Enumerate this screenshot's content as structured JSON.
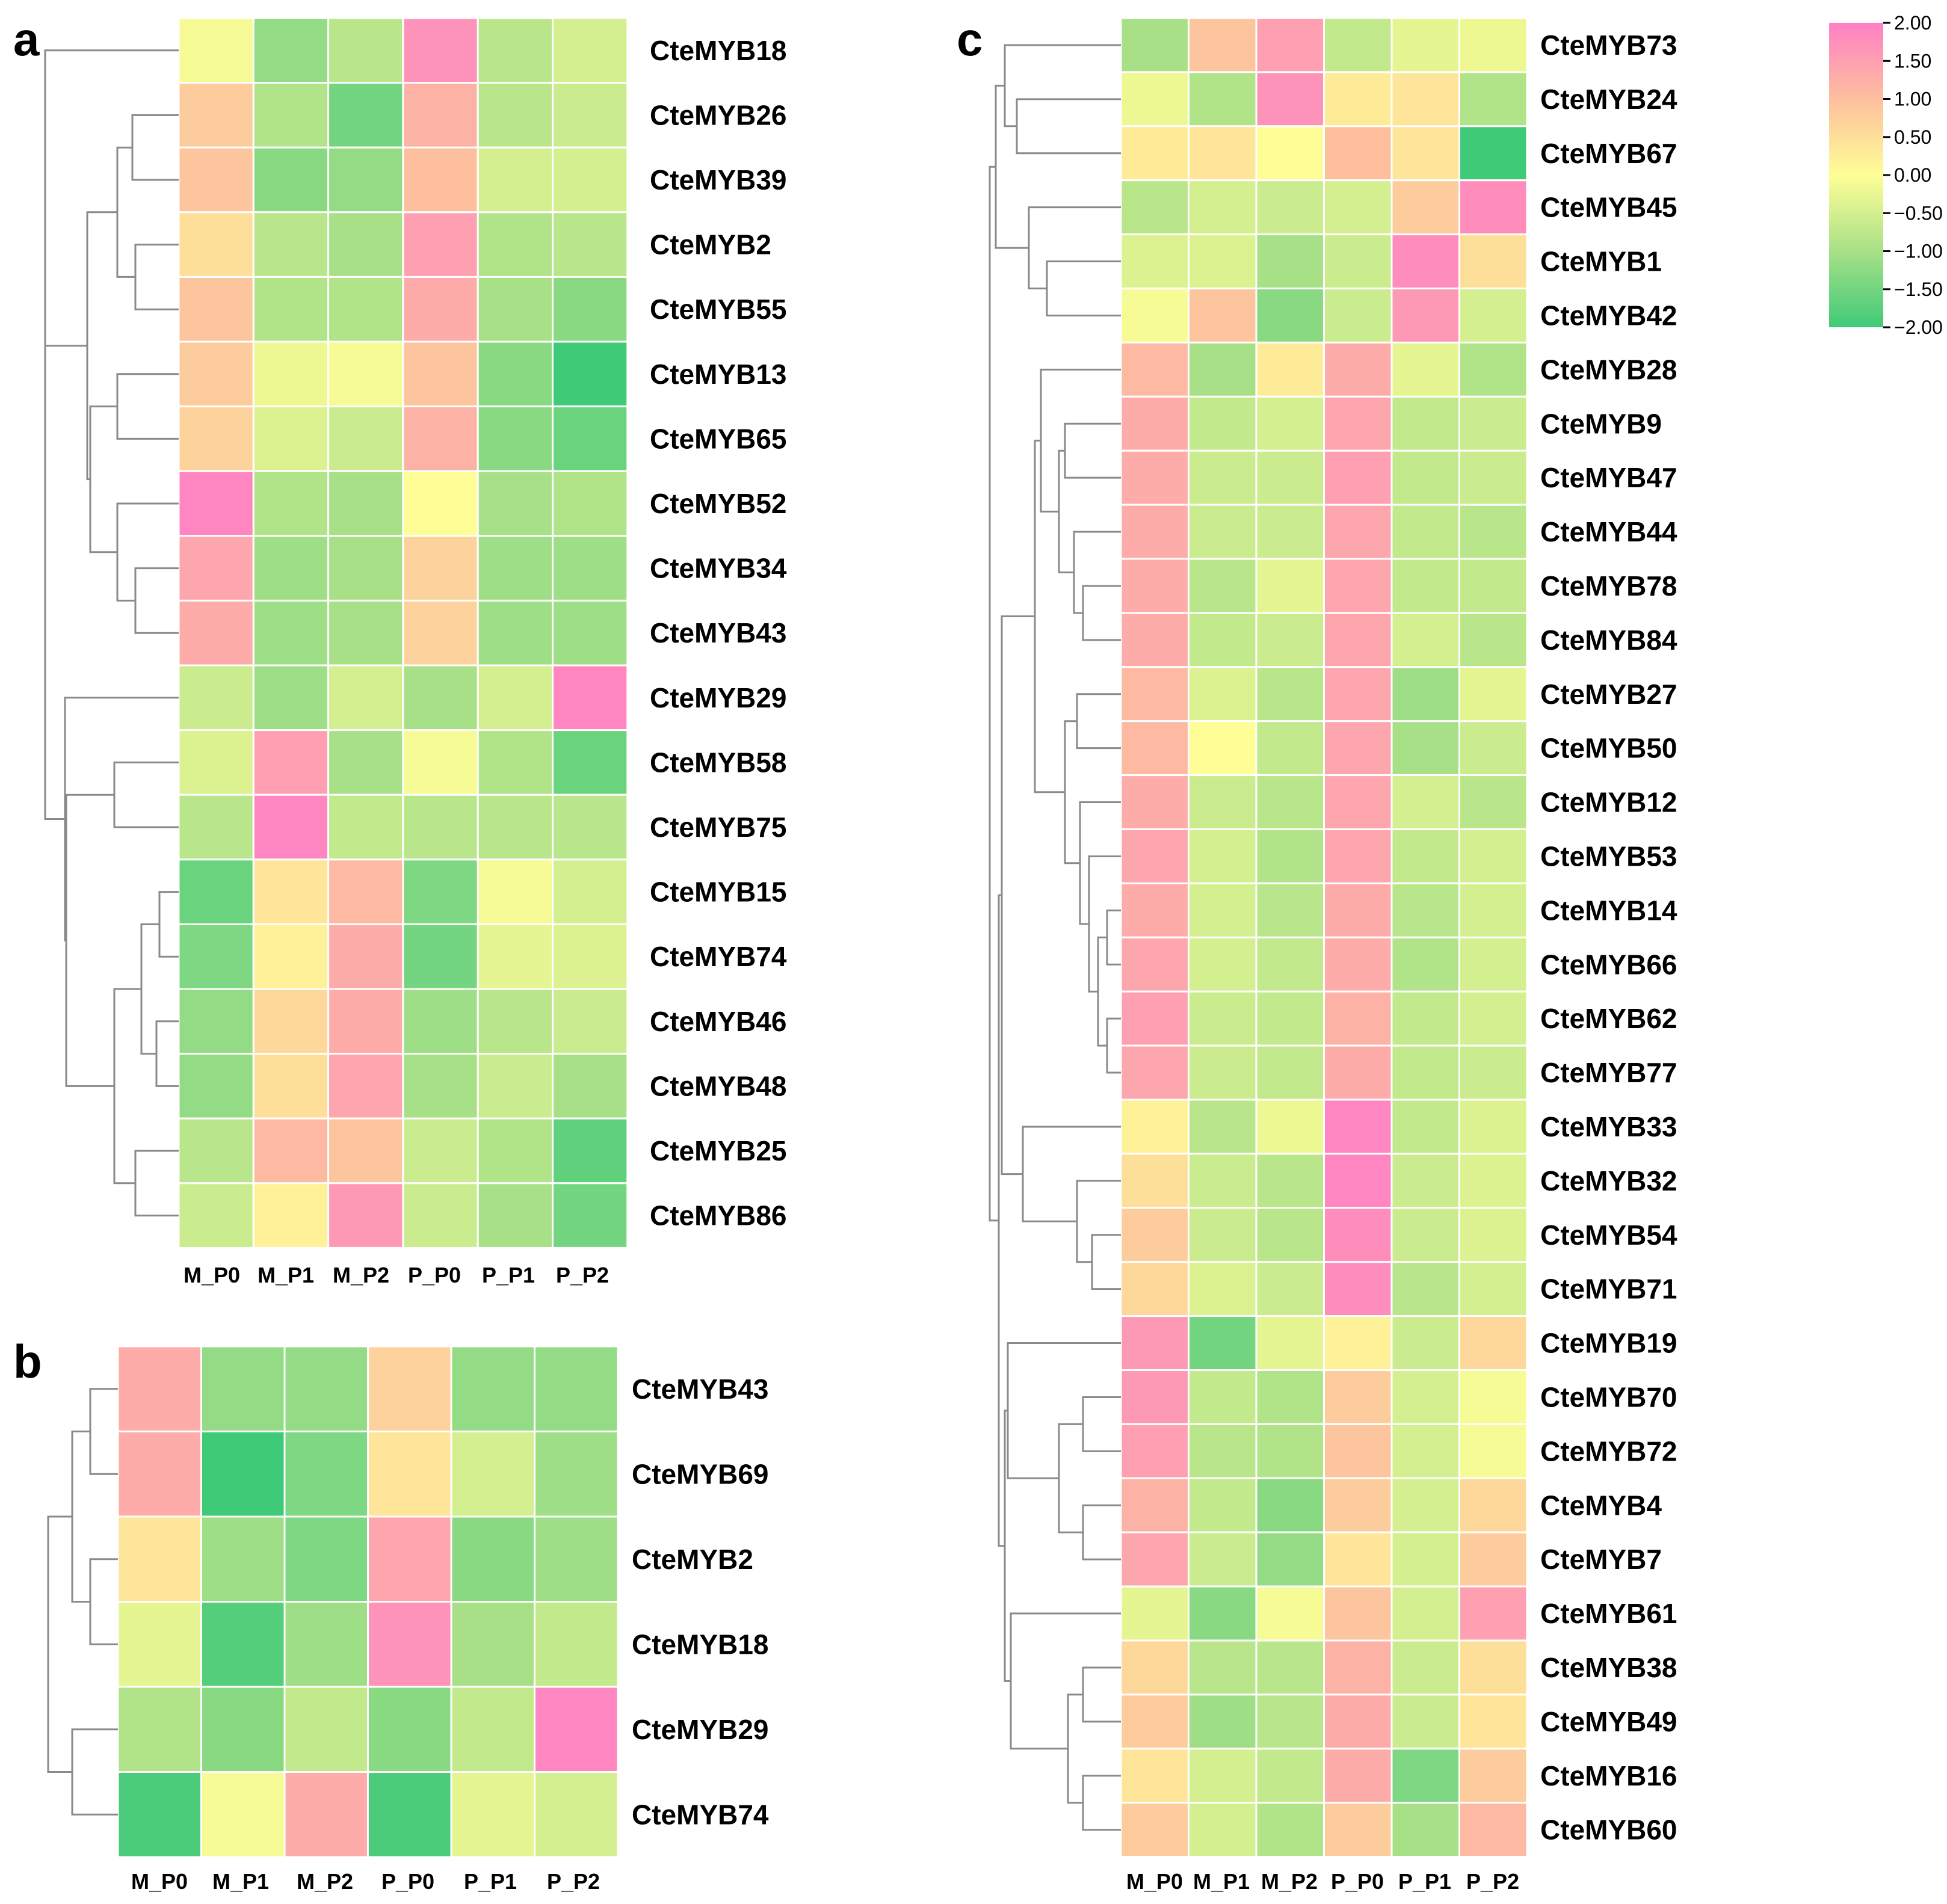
{
  "chart_data": [
    {
      "type": "heatmap",
      "panel": "a",
      "rows": [
        "CteMYB18",
        "CteMYB26",
        "CteMYB39",
        "CteMYB2",
        "CteMYB55",
        "CteMYB13",
        "CteMYB65",
        "CteMYB52",
        "CteMYB34",
        "CteMYB43",
        "CteMYB29",
        "CteMYB58",
        "CteMYB75",
        "CteMYB15",
        "CteMYB74",
        "CteMYB46",
        "CteMYB48",
        "CteMYB25",
        "CteMYB86"
      ],
      "columns": [
        "M_P0",
        "M_P1",
        "M_P2",
        "P_P0",
        "P_P1",
        "P_P2"
      ],
      "values": [
        [
          -0.1,
          -1.2,
          -0.8,
          1.7,
          -0.8,
          -0.5
        ],
        [
          0.8,
          -0.9,
          -1.5,
          1.2,
          -0.8,
          -0.6
        ],
        [
          0.9,
          -1.3,
          -1.2,
          1.0,
          -0.5,
          -0.5
        ],
        [
          0.5,
          -0.8,
          -1.0,
          1.5,
          -0.9,
          -0.8
        ],
        [
          0.9,
          -0.9,
          -0.9,
          1.3,
          -1.0,
          -1.3
        ],
        [
          0.8,
          -0.2,
          -0.1,
          0.9,
          -1.3,
          -2.0
        ],
        [
          0.7,
          -0.4,
          -0.6,
          1.2,
          -1.3,
          -1.6
        ],
        [
          1.9,
          -0.9,
          -1.0,
          0.0,
          -1.0,
          -0.9
        ],
        [
          1.4,
          -1.1,
          -1.0,
          0.7,
          -1.1,
          -1.1
        ],
        [
          1.3,
          -1.1,
          -1.0,
          0.7,
          -1.1,
          -1.1
        ],
        [
          -0.6,
          -1.1,
          -0.5,
          -1.0,
          -0.5,
          1.9
        ],
        [
          -0.4,
          1.5,
          -1.0,
          -0.1,
          -0.9,
          -1.6
        ],
        [
          -0.8,
          1.9,
          -0.7,
          -0.8,
          -0.8,
          -0.8
        ],
        [
          -1.6,
          0.4,
          1.1,
          -1.4,
          -0.1,
          -0.5
        ],
        [
          -1.4,
          0.2,
          1.3,
          -1.5,
          -0.3,
          -0.4
        ],
        [
          -1.2,
          0.6,
          1.3,
          -1.1,
          -0.8,
          -0.6
        ],
        [
          -1.2,
          0.5,
          1.4,
          -1.0,
          -0.6,
          -1.0
        ],
        [
          -0.8,
          1.1,
          0.9,
          -0.6,
          -0.9,
          -1.7
        ],
        [
          -0.6,
          0.2,
          1.6,
          -0.6,
          -1.0,
          -1.5
        ]
      ],
      "color_range": [
        -2,
        2
      ]
    },
    {
      "type": "heatmap",
      "panel": "b",
      "rows": [
        "CteMYB43",
        "CteMYB69",
        "CteMYB2",
        "CteMYB18",
        "CteMYB29",
        "CteMYB74"
      ],
      "columns": [
        "M_P0",
        "M_P1",
        "M_P2",
        "P_P0",
        "P_P1",
        "P_P2"
      ],
      "values": [
        [
          1.3,
          -1.2,
          -1.2,
          0.7,
          -1.2,
          -1.2
        ],
        [
          1.3,
          -2.0,
          -1.4,
          0.4,
          -0.5,
          -1.1
        ],
        [
          0.4,
          -1.1,
          -1.4,
          1.4,
          -1.3,
          -1.1
        ],
        [
          -0.3,
          -1.8,
          -1.1,
          1.7,
          -1.0,
          -0.7
        ],
        [
          -0.9,
          -1.3,
          -0.7,
          -1.3,
          -0.7,
          1.9
        ],
        [
          -1.9,
          -0.1,
          1.3,
          -1.9,
          -0.3,
          -0.5
        ]
      ],
      "color_range": [
        -2,
        2
      ]
    },
    {
      "type": "heatmap",
      "panel": "c",
      "rows": [
        "CteMYB73",
        "CteMYB24",
        "CteMYB67",
        "CteMYB45",
        "CteMYB1",
        "CteMYB42",
        "CteMYB28",
        "CteMYB9",
        "CteMYB47",
        "CteMYB44",
        "CteMYB78",
        "CteMYB84",
        "CteMYB27",
        "CteMYB50",
        "CteMYB12",
        "CteMYB53",
        "CteMYB14",
        "CteMYB66",
        "CteMYB62",
        "CteMYB77",
        "CteMYB33",
        "CteMYB32",
        "CteMYB54",
        "CteMYB71",
        "CteMYB19",
        "CteMYB70",
        "CteMYB72",
        "CteMYB4",
        "CteMYB7",
        "CteMYB61",
        "CteMYB38",
        "CteMYB49",
        "CteMYB16",
        "CteMYB60"
      ],
      "columns": [
        "M_P0",
        "M_P1",
        "M_P2",
        "P_P0",
        "P_P1",
        "P_P2"
      ],
      "values": [
        [
          -1.0,
          0.9,
          1.5,
          -0.7,
          -0.3,
          -0.2
        ],
        [
          -0.2,
          -0.9,
          1.7,
          0.3,
          0.4,
          -0.9
        ],
        [
          0.3,
          0.4,
          0.0,
          1.0,
          0.4,
          -2.0
        ],
        [
          -0.8,
          -0.5,
          -0.6,
          -0.5,
          0.8,
          1.8
        ],
        [
          -0.4,
          -0.4,
          -1.0,
          -0.6,
          1.8,
          0.5
        ],
        [
          -0.1,
          0.9,
          -1.3,
          -0.6,
          1.6,
          -0.5
        ],
        [
          1.1,
          -1.0,
          0.3,
          1.3,
          -0.3,
          -0.9
        ],
        [
          1.3,
          -0.7,
          -0.5,
          1.4,
          -0.7,
          -0.6
        ],
        [
          1.3,
          -0.6,
          -0.6,
          1.5,
          -0.7,
          -0.6
        ],
        [
          1.3,
          -0.6,
          -0.6,
          1.4,
          -0.7,
          -0.8
        ],
        [
          1.3,
          -0.8,
          -0.3,
          1.4,
          -0.7,
          -0.7
        ],
        [
          1.3,
          -0.7,
          -0.6,
          1.4,
          -0.5,
          -0.8
        ],
        [
          1.1,
          -0.4,
          -0.8,
          1.4,
          -1.1,
          -0.3
        ],
        [
          1.1,
          0.0,
          -0.7,
          1.4,
          -1.0,
          -0.6
        ],
        [
          1.3,
          -0.6,
          -0.8,
          1.4,
          -0.5,
          -0.8
        ],
        [
          1.4,
          -0.5,
          -0.9,
          1.4,
          -0.7,
          -0.5
        ],
        [
          1.3,
          -0.5,
          -0.8,
          1.3,
          -0.8,
          -0.5
        ],
        [
          1.4,
          -0.5,
          -0.7,
          1.3,
          -0.9,
          -0.5
        ],
        [
          1.5,
          -0.6,
          -0.7,
          1.2,
          -0.7,
          -0.5
        ],
        [
          1.4,
          -0.6,
          -0.7,
          1.3,
          -0.7,
          -0.6
        ],
        [
          0.2,
          -0.8,
          -0.2,
          1.9,
          -0.7,
          -0.4
        ],
        [
          0.5,
          -0.6,
          -0.8,
          1.9,
          -0.6,
          -0.4
        ],
        [
          0.8,
          -0.6,
          -0.8,
          1.8,
          -0.6,
          -0.4
        ],
        [
          0.6,
          -0.4,
          -0.6,
          1.8,
          -0.8,
          -0.5
        ],
        [
          1.6,
          -1.5,
          -0.3,
          0.2,
          -0.6,
          0.6
        ],
        [
          1.6,
          -0.7,
          -0.9,
          0.8,
          -0.5,
          -0.1
        ],
        [
          1.5,
          -0.8,
          -0.9,
          0.9,
          -0.5,
          -0.1
        ],
        [
          1.2,
          -0.7,
          -1.3,
          0.8,
          -0.5,
          0.6
        ],
        [
          1.4,
          -0.6,
          -1.2,
          0.4,
          -0.5,
          0.8
        ],
        [
          -0.3,
          -1.3,
          -0.1,
          0.9,
          -0.5,
          1.5
        ],
        [
          0.6,
          -0.8,
          -0.8,
          1.2,
          -0.6,
          0.5
        ],
        [
          0.8,
          -1.1,
          -0.8,
          1.3,
          -0.6,
          0.4
        ],
        [
          0.4,
          -0.5,
          -0.7,
          1.3,
          -1.4,
          0.8
        ],
        [
          0.8,
          -0.5,
          -0.9,
          0.8,
          -1.0,
          1.1
        ]
      ],
      "color_range": [
        -2,
        2
      ]
    }
  ],
  "panel_labels": {
    "a": "a",
    "b": "b",
    "c": "c"
  },
  "colorbar": {
    "ticks": [
      "2.00",
      "1.50",
      "1.00",
      "0.50",
      "0.00",
      "−0.50",
      "−1.00",
      "−1.50",
      "−2.00"
    ],
    "colors": {
      "low": "#3fca78",
      "low_mid": "#a8e088",
      "mid": "#fffe96",
      "high_mid": "#fdbf9e",
      "high": "#ff80c4"
    }
  }
}
